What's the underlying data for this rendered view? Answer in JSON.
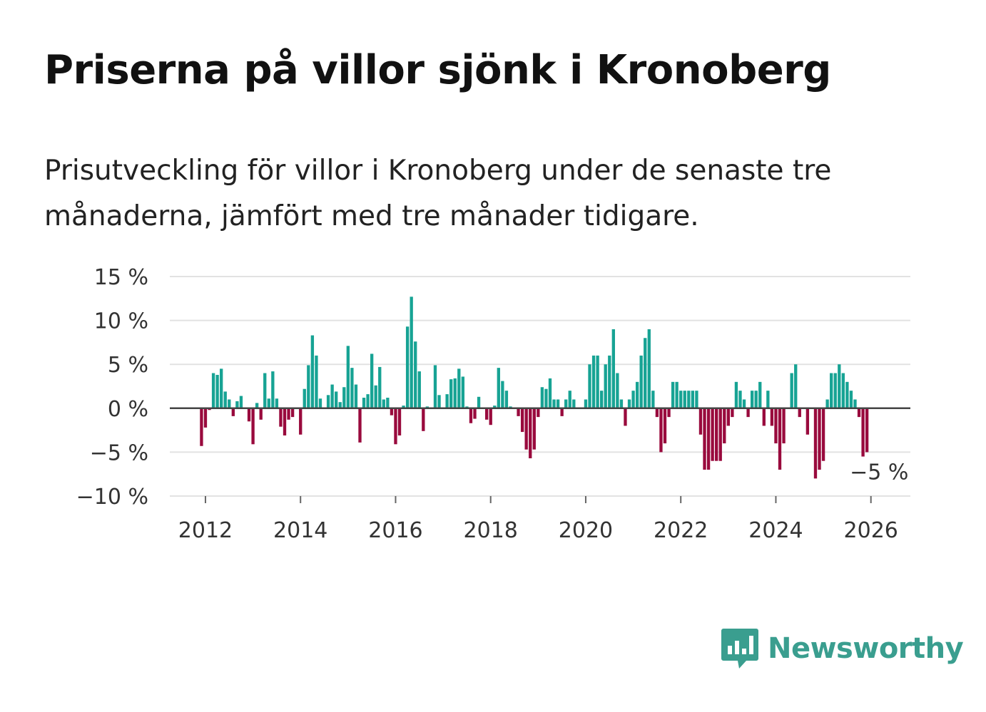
{
  "title": "Priserna på villor sjönk i Kronoberg",
  "subtitle": "Prisutveckling för villor i Kronoberg under de senaste tre månaderna, jämfört med tre månader tidigare.",
  "brand": {
    "name": "Newsworthy",
    "color": "#3a9e8f"
  },
  "colors": {
    "positive": "#17a394",
    "negative": "#990a3d",
    "grid": "#e2e2e2",
    "zero_line": "#444444"
  },
  "chart_data": {
    "type": "bar",
    "title": "",
    "xlabel": "",
    "ylabel": "",
    "ylim": [
      -10,
      15
    ],
    "xlim": [
      2011.25,
      2026.83
    ],
    "y_ticks": [
      15,
      10,
      5,
      0,
      -5,
      -10
    ],
    "y_tick_labels": [
      "15 %",
      "10 %",
      "5 %",
      "0 %",
      "−5 %",
      "−10 %"
    ],
    "x_ticks": [
      2012,
      2014,
      2016,
      2018,
      2020,
      2022,
      2024,
      2026
    ],
    "x_tick_labels": [
      "2012",
      "2014",
      "2016",
      "2018",
      "2020",
      "2022",
      "2024",
      "2026"
    ],
    "start": {
      "year": 2011,
      "month": 12
    },
    "frequency": "monthly",
    "values": [
      -4.3,
      -2.2,
      -0.2,
      4.0,
      3.8,
      4.5,
      1.9,
      1.0,
      -0.9,
      0.8,
      1.4,
      0,
      -1.5,
      -4.1,
      0.6,
      -1.3,
      4.0,
      1.1,
      4.2,
      1.1,
      -2.1,
      -3.1,
      -1.3,
      -1.0,
      0,
      -3.0,
      2.2,
      4.9,
      8.3,
      6.0,
      1.1,
      0,
      1.5,
      2.7,
      1.9,
      0.7,
      2.4,
      7.1,
      4.6,
      2.7,
      -3.9,
      1.2,
      1.6,
      6.2,
      2.6,
      4.7,
      1.0,
      1.2,
      -0.8,
      -4.1,
      -3.1,
      0.3,
      9.3,
      12.7,
      7.6,
      4.2,
      -2.6,
      0.2,
      0,
      4.9,
      1.5,
      0,
      1.6,
      3.3,
      3.4,
      4.5,
      3.6,
      0.2,
      -1.7,
      -1.2,
      1.3,
      0,
      -1.3,
      -1.9,
      0.3,
      4.6,
      3.1,
      2.0,
      0.2,
      0,
      -0.9,
      -2.7,
      -4.7,
      -5.7,
      -4.7,
      -1.0,
      2.4,
      2.2,
      3.4,
      1.0,
      1.0,
      -0.9,
      1.0,
      2.0,
      1.0,
      0,
      0,
      1.0,
      5.0,
      6.0,
      6.0,
      2.0,
      5.0,
      6.0,
      9.0,
      4.0,
      1.0,
      -2.0,
      1.0,
      2.0,
      3.0,
      6.0,
      8.0,
      9.0,
      2.0,
      -1.0,
      -5.0,
      -4.0,
      -1.0,
      3.0,
      3.0,
      2.0,
      2.0,
      2.0,
      2.0,
      2.0,
      -3.0,
      -7.0,
      -7.0,
      -6.0,
      -6.0,
      -6.0,
      -4.0,
      -2.0,
      -1.0,
      3.0,
      2.0,
      1.0,
      -1.0,
      2.0,
      2.0,
      3.0,
      -2.0,
      2.0,
      -2.0,
      -4.0,
      -7.0,
      -4.0,
      0,
      4.0,
      5.0,
      -1.0,
      0,
      -3.0,
      0,
      -8.0,
      -7.0,
      -6.0,
      1.0,
      4.0,
      4.0,
      5.0,
      4.0,
      3.0,
      2.0,
      1.0,
      -1.0,
      -5.5,
      -5.0
    ],
    "annotation": {
      "text": "−5 %",
      "x_index": 170
    }
  }
}
